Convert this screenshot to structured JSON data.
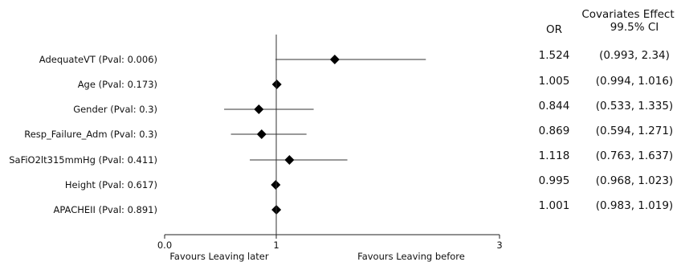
{
  "chart_data": {
    "type": "forest",
    "xlim": [
      0.0,
      3
    ],
    "reference_line": 1,
    "x_ticks": [
      {
        "value": 0.0,
        "label": "0.0"
      },
      {
        "value": 1,
        "label": "1"
      },
      {
        "value": 3,
        "label": "3"
      }
    ],
    "x_left_label": "Favours Leaving later",
    "x_right_label": "Favours Leaving before",
    "table_headers": {
      "or": "OR",
      "effect_title": "Covariates Effect",
      "ci": "99.5% CI"
    },
    "rows": [
      {
        "label": "AdequateVT (Pval: 0.006)",
        "or": 1.524,
        "lower": 0.993,
        "upper": 2.34,
        "or_text": "1.524",
        "ci_text": "(0.993, 2.34)"
      },
      {
        "label": "Age (Pval: 0.173)",
        "or": 1.005,
        "lower": 0.994,
        "upper": 1.016,
        "or_text": "1.005",
        "ci_text": "(0.994, 1.016)"
      },
      {
        "label": "Gender (Pval: 0.3)",
        "or": 0.844,
        "lower": 0.533,
        "upper": 1.335,
        "or_text": "0.844",
        "ci_text": "(0.533, 1.335)"
      },
      {
        "label": "Resp_Failure_Adm (Pval: 0.3)",
        "or": 0.869,
        "lower": 0.594,
        "upper": 1.271,
        "or_text": "0.869",
        "ci_text": "(0.594, 1.271)"
      },
      {
        "label": "SaFiO2lt315mmHg (Pval: 0.411)",
        "or": 1.118,
        "lower": 0.763,
        "upper": 1.637,
        "or_text": "1.118",
        "ci_text": "(0.763, 1.637)"
      },
      {
        "label": "Height (Pval: 0.617)",
        "or": 0.995,
        "lower": 0.968,
        "upper": 1.023,
        "or_text": "0.995",
        "ci_text": "(0.968, 1.023)"
      },
      {
        "label": "APACHEII (Pval: 0.891)",
        "or": 1.001,
        "lower": 0.983,
        "upper": 1.019,
        "or_text": "1.001",
        "ci_text": "(0.983, 1.019)"
      }
    ]
  }
}
